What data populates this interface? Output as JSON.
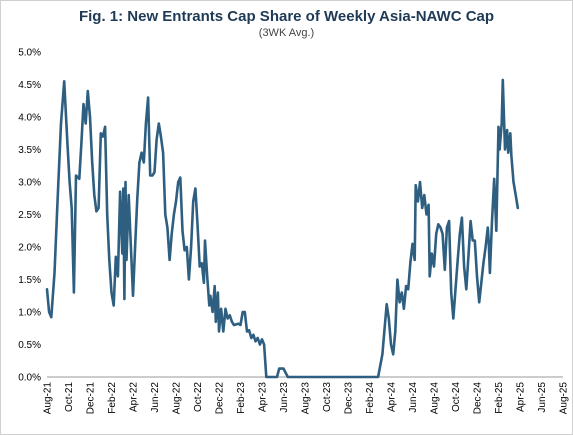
{
  "chart_data": {
    "type": "line",
    "title": "Fig. 1: New Entrants Cap Share of Weekly Asia-NAWC Cap",
    "subtitle": "(3WK Avg.)",
    "xlabel": "",
    "ylabel": "",
    "ylim": [
      0,
      5
    ],
    "yticks": [
      "0.0%",
      "0.5%",
      "1.0%",
      "1.5%",
      "2.0%",
      "2.5%",
      "3.0%",
      "3.5%",
      "4.0%",
      "4.5%",
      "5.0%"
    ],
    "xticks": [
      "Aug-21",
      "Oct-21",
      "Dec-21",
      "Feb-22",
      "Apr-22",
      "Jun-22",
      "Aug-22",
      "Oct-22",
      "Dec-22",
      "Feb-23",
      "Apr-23",
      "Jun-23",
      "Aug-23",
      "Oct-23",
      "Dec-23",
      "Feb-24",
      "Apr-24",
      "Jun-24",
      "Aug-24",
      "Oct-24",
      "Dec-24",
      "Feb-25",
      "Apr-25",
      "Jun-25",
      "Aug-25"
    ],
    "grid": false,
    "line_color": "#2e5f80",
    "series": [
      {
        "values": [
          [
            0.0,
            1.35
          ],
          [
            0.1,
            1.0
          ],
          [
            0.2,
            0.92
          ],
          [
            0.35,
            1.6
          ],
          [
            0.5,
            2.8
          ],
          [
            0.65,
            3.9
          ],
          [
            0.8,
            4.55
          ],
          [
            0.95,
            3.6
          ],
          [
            1.05,
            3.0
          ],
          [
            1.15,
            2.6
          ],
          [
            1.25,
            1.3
          ],
          [
            1.35,
            3.1
          ],
          [
            1.5,
            3.05
          ],
          [
            1.6,
            3.6
          ],
          [
            1.7,
            4.2
          ],
          [
            1.8,
            3.9
          ],
          [
            1.9,
            4.4
          ],
          [
            2.0,
            4.0
          ],
          [
            2.1,
            3.3
          ],
          [
            2.2,
            2.8
          ],
          [
            2.3,
            2.55
          ],
          [
            2.4,
            2.6
          ],
          [
            2.5,
            3.75
          ],
          [
            2.6,
            3.7
          ],
          [
            2.7,
            3.85
          ],
          [
            2.8,
            2.5
          ],
          [
            2.9,
            1.8
          ],
          [
            3.0,
            1.3
          ],
          [
            3.1,
            1.1
          ],
          [
            3.2,
            1.85
          ],
          [
            3.3,
            1.55
          ],
          [
            3.4,
            2.85
          ],
          [
            3.5,
            1.9
          ],
          [
            3.55,
            2.9
          ],
          [
            3.6,
            1.2
          ],
          [
            3.65,
            3.0
          ],
          [
            3.7,
            1.8
          ],
          [
            3.8,
            2.8
          ],
          [
            3.9,
            2.0
          ],
          [
            4.0,
            1.25
          ],
          [
            4.1,
            2.0
          ],
          [
            4.2,
            2.75
          ],
          [
            4.3,
            3.3
          ],
          [
            4.4,
            3.45
          ],
          [
            4.5,
            3.3
          ],
          [
            4.6,
            3.9
          ],
          [
            4.7,
            4.3
          ],
          [
            4.8,
            3.1
          ],
          [
            4.9,
            3.1
          ],
          [
            5.0,
            3.15
          ],
          [
            5.1,
            3.65
          ],
          [
            5.2,
            3.9
          ],
          [
            5.3,
            3.7
          ],
          [
            5.4,
            3.45
          ],
          [
            5.5,
            2.5
          ],
          [
            5.6,
            2.3
          ],
          [
            5.7,
            1.8
          ],
          [
            5.8,
            2.2
          ],
          [
            5.9,
            2.5
          ],
          [
            6.0,
            2.7
          ],
          [
            6.1,
            3.0
          ],
          [
            6.2,
            3.07
          ],
          [
            6.3,
            2.25
          ],
          [
            6.4,
            1.95
          ],
          [
            6.5,
            2.0
          ],
          [
            6.6,
            1.5
          ],
          [
            6.7,
            2.0
          ],
          [
            6.8,
            2.7
          ],
          [
            6.9,
            2.9
          ],
          [
            7.0,
            2.35
          ],
          [
            7.1,
            1.7
          ],
          [
            7.2,
            1.75
          ],
          [
            7.3,
            1.45
          ],
          [
            7.35,
            2.1
          ],
          [
            7.45,
            1.55
          ],
          [
            7.55,
            1.1
          ],
          [
            7.6,
            1.25
          ],
          [
            7.7,
            1.0
          ],
          [
            7.8,
            1.4
          ],
          [
            7.85,
            0.85
          ],
          [
            7.95,
            1.3
          ],
          [
            8.0,
            0.7
          ],
          [
            8.1,
            1.05
          ],
          [
            8.2,
            0.7
          ],
          [
            8.3,
            1.05
          ],
          [
            8.4,
            0.9
          ],
          [
            8.5,
            0.95
          ],
          [
            8.6,
            0.85
          ],
          [
            8.7,
            0.8
          ],
          [
            8.9,
            0.82
          ],
          [
            9.0,
            0.8
          ],
          [
            9.1,
            1.0
          ],
          [
            9.2,
            1.0
          ],
          [
            9.3,
            0.7
          ],
          [
            9.4,
            0.72
          ],
          [
            9.5,
            0.6
          ],
          [
            9.6,
            0.65
          ],
          [
            9.7,
            0.55
          ],
          [
            9.8,
            0.6
          ],
          [
            9.9,
            0.5
          ],
          [
            10.0,
            0.58
          ],
          [
            10.1,
            0.5
          ],
          [
            10.2,
            0.0
          ],
          [
            10.7,
            0.0
          ],
          [
            10.8,
            0.13
          ],
          [
            11.0,
            0.13
          ],
          [
            11.2,
            0.0
          ],
          [
            15.4,
            0.0
          ],
          [
            15.6,
            0.35
          ],
          [
            15.7,
            0.75
          ],
          [
            15.8,
            1.12
          ],
          [
            15.9,
            0.9
          ],
          [
            16.0,
            0.5
          ],
          [
            16.1,
            0.35
          ],
          [
            16.2,
            0.7
          ],
          [
            16.3,
            1.5
          ],
          [
            16.4,
            1.15
          ],
          [
            16.5,
            1.3
          ],
          [
            16.6,
            1.05
          ],
          [
            16.7,
            1.4
          ],
          [
            16.8,
            1.35
          ],
          [
            16.9,
            1.75
          ],
          [
            17.0,
            2.05
          ],
          [
            17.1,
            1.8
          ],
          [
            17.15,
            2.95
          ],
          [
            17.25,
            2.7
          ],
          [
            17.35,
            3.0
          ],
          [
            17.45,
            2.6
          ],
          [
            17.55,
            2.8
          ],
          [
            17.65,
            2.5
          ],
          [
            17.75,
            2.65
          ],
          [
            17.8,
            1.55
          ],
          [
            17.9,
            1.9
          ],
          [
            18.0,
            1.7
          ],
          [
            18.1,
            2.2
          ],
          [
            18.2,
            2.35
          ],
          [
            18.3,
            2.3
          ],
          [
            18.4,
            2.2
          ],
          [
            18.5,
            1.65
          ],
          [
            18.6,
            2.3
          ],
          [
            18.7,
            2.4
          ],
          [
            18.8,
            1.3
          ],
          [
            18.9,
            0.9
          ],
          [
            19.0,
            1.35
          ],
          [
            19.1,
            1.8
          ],
          [
            19.2,
            2.2
          ],
          [
            19.3,
            2.45
          ],
          [
            19.4,
            1.7
          ],
          [
            19.5,
            1.35
          ],
          [
            19.6,
            1.85
          ],
          [
            19.7,
            2.4
          ],
          [
            19.8,
            2.1
          ],
          [
            19.9,
            2.1
          ],
          [
            20.0,
            1.55
          ],
          [
            20.1,
            1.15
          ],
          [
            20.2,
            1.45
          ],
          [
            20.3,
            1.75
          ],
          [
            20.4,
            2.0
          ],
          [
            20.5,
            2.3
          ],
          [
            20.55,
            2.05
          ],
          [
            20.6,
            1.6
          ],
          [
            20.7,
            2.4
          ],
          [
            20.8,
            3.05
          ],
          [
            20.9,
            2.25
          ],
          [
            21.0,
            3.85
          ],
          [
            21.05,
            3.5
          ],
          [
            21.15,
            3.9
          ],
          [
            21.2,
            4.57
          ],
          [
            21.3,
            3.5
          ],
          [
            21.4,
            3.8
          ],
          [
            21.45,
            3.45
          ],
          [
            21.55,
            3.75
          ],
          [
            21.6,
            3.4
          ],
          [
            21.7,
            3.0
          ],
          [
            21.8,
            2.8
          ],
          [
            21.9,
            2.6
          ]
        ]
      }
    ]
  }
}
